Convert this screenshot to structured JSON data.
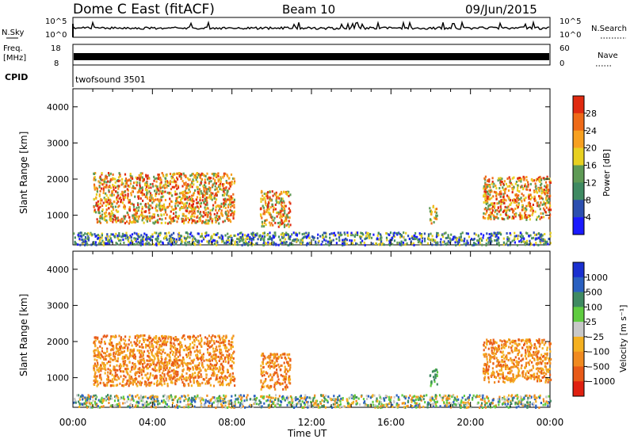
{
  "header": {
    "radar": "Dome C East (fitACF)",
    "beam": "Beam 10",
    "date": "09/Jun/2015"
  },
  "status_panels": {
    "nsky_label": "N.Sky",
    "nsky_ticks": [
      "10^5",
      "10^0"
    ],
    "nsearch_label": "N.Search",
    "nsearch_ticks": [
      "10^5",
      "10^0"
    ],
    "freq_label_1": "Freq.",
    "freq_label_2": "[MHz]",
    "freq_ticks": [
      "18",
      "8"
    ],
    "nave_label": "Nave",
    "nave_ticks": [
      "60",
      "0"
    ],
    "cpid_label": "CPID",
    "cpid_value": "twofsound 3501"
  },
  "chart_data": [
    {
      "type": "heatmap",
      "title": "",
      "xlabel": "",
      "ylabel": "Slant Range [km]",
      "ylim": [
        180,
        4500
      ],
      "xlim": [
        0,
        24
      ],
      "yticks": [
        1000,
        2000,
        3000,
        4000
      ],
      "ytick_labels": [
        "1000",
        "2000",
        "3000",
        "4000"
      ],
      "colorbar": {
        "label": "Power [dB]",
        "tick_labels": [
          "4",
          "8",
          "12",
          "16",
          "20",
          "24",
          "28"
        ],
        "colors": [
          "#1a1aff",
          "#2c4fb0",
          "#3f8a62",
          "#5e9a55",
          "#e8d020",
          "#f7a020",
          "#ee6a18",
          "#e02a10"
        ]
      },
      "echo_regions": [
        {
          "t0": 1.0,
          "t1": 8.1,
          "r0": 800,
          "r1": 2200,
          "level": "high"
        },
        {
          "t0": 9.4,
          "t1": 10.9,
          "r0": 700,
          "r1": 1700,
          "level": "high"
        },
        {
          "t0": 17.9,
          "t1": 18.3,
          "r0": 800,
          "r1": 1300,
          "level": "mid"
        },
        {
          "t0": 20.6,
          "t1": 24.0,
          "r0": 900,
          "r1": 2100,
          "level": "high"
        },
        {
          "t0": 0.0,
          "t1": 24.0,
          "r0": 200,
          "r1": 550,
          "level": "low"
        }
      ]
    },
    {
      "type": "heatmap",
      "title": "",
      "xlabel": "Time UT",
      "ylabel": "Slant Range [km]",
      "ylim": [
        180,
        4500
      ],
      "xlim": [
        0,
        24
      ],
      "yticks": [
        1000,
        2000,
        3000,
        4000
      ],
      "ytick_labels": [
        "1000",
        "2000",
        "3000",
        "4000"
      ],
      "xticks": [
        0,
        4,
        8,
        12,
        16,
        20,
        24
      ],
      "xtick_labels": [
        "00:00",
        "04:00",
        "08:00",
        "12:00",
        "16:00",
        "20:00",
        "00:00"
      ],
      "colorbar": {
        "label": "Velocity [m s⁻¹]",
        "tick_labels": [
          "1000",
          "500",
          "100",
          "25",
          "−25",
          "−100",
          "−500",
          "−1000"
        ],
        "colors": [
          "#1a30d0",
          "#2a60c0",
          "#3f8a62",
          "#5fcc40",
          "#c8c8c8",
          "#f4b020",
          "#f08a20",
          "#e85a18",
          "#e02010"
        ]
      },
      "echo_regions": [
        {
          "t0": 1.0,
          "t1": 8.1,
          "r0": 800,
          "r1": 2200,
          "level": "negative"
        },
        {
          "t0": 9.4,
          "t1": 10.9,
          "r0": 700,
          "r1": 1700,
          "level": "negative"
        },
        {
          "t0": 17.9,
          "t1": 18.3,
          "r0": 800,
          "r1": 1300,
          "level": "positive"
        },
        {
          "t0": 20.6,
          "t1": 24.0,
          "r0": 900,
          "r1": 2100,
          "level": "negative"
        },
        {
          "t0": 0.0,
          "t1": 24.0,
          "r0": 200,
          "r1": 550,
          "level": "mixed"
        }
      ]
    }
  ]
}
